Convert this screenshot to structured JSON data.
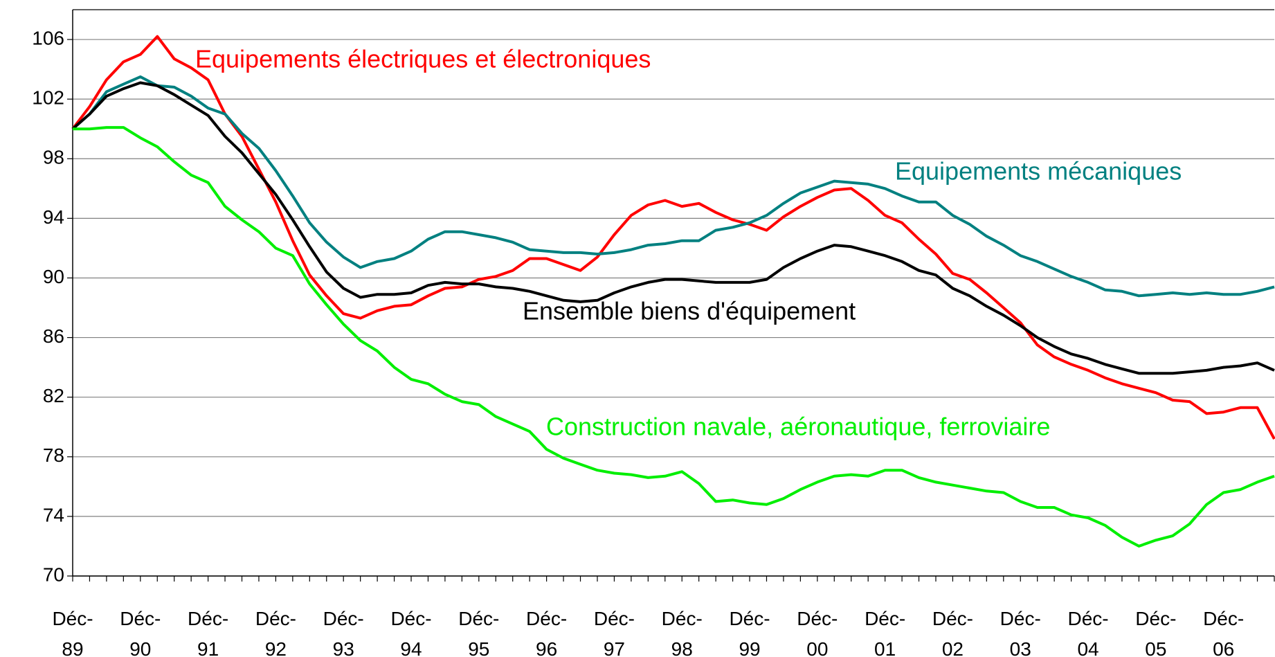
{
  "chart_data": {
    "type": "line",
    "categories": [
      "Déc-\n89",
      null,
      null,
      null,
      "Déc-\n90",
      null,
      null,
      null,
      "Déc-\n91",
      null,
      null,
      null,
      "Déc-\n92",
      null,
      null,
      null,
      "Déc-\n93",
      null,
      null,
      null,
      "Déc-\n94",
      null,
      null,
      null,
      "Déc-\n95",
      null,
      null,
      null,
      "Déc-\n96",
      null,
      null,
      null,
      "Déc-\n97",
      null,
      null,
      null,
      "Déc-\n98",
      null,
      null,
      null,
      "Déc-\n99",
      null,
      null,
      null,
      "Déc-\n00",
      null,
      null,
      null,
      "Déc-\n01",
      null,
      null,
      null,
      "Déc-\n02",
      null,
      null,
      null,
      "Déc-\n03",
      null,
      null,
      null,
      "Déc-\n04",
      null,
      null,
      null,
      "Déc-\n05",
      null,
      null,
      null,
      "Déc-\n06",
      null,
      null,
      null
    ],
    "series": [
      {
        "name": "Equipements électriques et électroniques",
        "color": "#ff0000",
        "values": [
          100,
          101.5,
          103.3,
          104.5,
          105,
          106.2,
          104.7,
          104.1,
          103.3,
          101,
          99.5,
          97.3,
          95.1,
          92.5,
          90.2,
          88.8,
          87.6,
          87.3,
          87.8,
          88.1,
          88.2,
          88.8,
          89.3,
          89.4,
          89.9,
          90.1,
          90.5,
          91.3,
          91.3,
          90.9,
          90.5,
          91.4,
          92.9,
          94.2,
          94.9,
          95.2,
          94.8,
          95,
          94.4,
          93.9,
          93.6,
          93.2,
          94.1,
          94.8,
          95.4,
          95.9,
          96,
          95.2,
          94.2,
          93.7,
          92.6,
          91.6,
          90.3,
          89.9,
          89,
          88,
          87,
          85.5,
          84.7,
          84.2,
          83.8,
          83.3,
          82.9,
          82.6,
          82.3,
          81.8,
          81.7,
          80.9,
          81,
          81.3,
          81.3,
          79.2
        ]
      },
      {
        "name": "Equipements mécaniques",
        "color": "#008080",
        "values": [
          100,
          101,
          102.5,
          103,
          103.5,
          102.9,
          102.8,
          102.2,
          101.4,
          101,
          99.7,
          98.7,
          97.2,
          95.5,
          93.7,
          92.4,
          91.4,
          90.7,
          91.1,
          91.3,
          91.8,
          92.6,
          93.1,
          93.1,
          92.9,
          92.7,
          92.4,
          91.9,
          91.8,
          91.7,
          91.7,
          91.6,
          91.7,
          91.9,
          92.2,
          92.3,
          92.5,
          92.5,
          93.2,
          93.4,
          93.7,
          94.2,
          95,
          95.7,
          96.1,
          96.5,
          96.4,
          96.3,
          96,
          95.5,
          95.1,
          95.1,
          94.2,
          93.6,
          92.8,
          92.2,
          91.5,
          91.1,
          90.6,
          90.1,
          89.7,
          89.2,
          89.1,
          88.8,
          88.9,
          89,
          88.9,
          89,
          88.9,
          88.9,
          89.1,
          89.4
        ]
      },
      {
        "name": "Ensemble biens d'équipement",
        "color": "#000000",
        "values": [
          100,
          101,
          102.2,
          102.7,
          103.1,
          102.9,
          102.3,
          101.6,
          100.9,
          99.5,
          98.4,
          97,
          95.6,
          93.9,
          92.1,
          90.4,
          89.3,
          88.7,
          88.9,
          88.9,
          89,
          89.5,
          89.7,
          89.6,
          89.6,
          89.4,
          89.3,
          89.1,
          88.8,
          88.5,
          88.4,
          88.5,
          89,
          89.4,
          89.7,
          89.9,
          89.9,
          89.8,
          89.7,
          89.7,
          89.7,
          89.9,
          90.7,
          91.3,
          91.8,
          92.2,
          92.1,
          91.8,
          91.5,
          91.1,
          90.5,
          90.2,
          89.3,
          88.8,
          88.1,
          87.5,
          86.8,
          86,
          85.4,
          84.9,
          84.6,
          84.2,
          83.9,
          83.6,
          83.6,
          83.6,
          83.7,
          83.8,
          84,
          84.1,
          84.3,
          83.8
        ]
      },
      {
        "name": "Construction navale, aéronautique, ferroviaire",
        "color": "#00ee00",
        "values": [
          100,
          100,
          100.1,
          100.1,
          99.4,
          98.8,
          97.8,
          96.9,
          96.4,
          94.8,
          93.9,
          93.1,
          92,
          91.5,
          89.6,
          88.2,
          86.9,
          85.8,
          85.1,
          84,
          83.2,
          82.9,
          82.2,
          81.7,
          81.5,
          80.7,
          80.2,
          79.7,
          78.5,
          77.9,
          77.5,
          77.1,
          76.9,
          76.8,
          76.6,
          76.7,
          77,
          76.2,
          75,
          75.1,
          74.9,
          74.8,
          75.2,
          75.8,
          76.3,
          76.7,
          76.8,
          76.7,
          77.1,
          77.1,
          76.6,
          76.3,
          76.1,
          75.9,
          75.7,
          75.6,
          75,
          74.6,
          74.6,
          74.1,
          73.9,
          73.4,
          72.6,
          72,
          72.4,
          72.7,
          73.5,
          74.8,
          75.6,
          75.8,
          76.3,
          76.7
        ]
      }
    ],
    "ylim": [
      70,
      108
    ],
    "yticks": [
      70,
      74,
      78,
      82,
      86,
      90,
      94,
      98,
      102,
      106
    ],
    "grid": true
  }
}
